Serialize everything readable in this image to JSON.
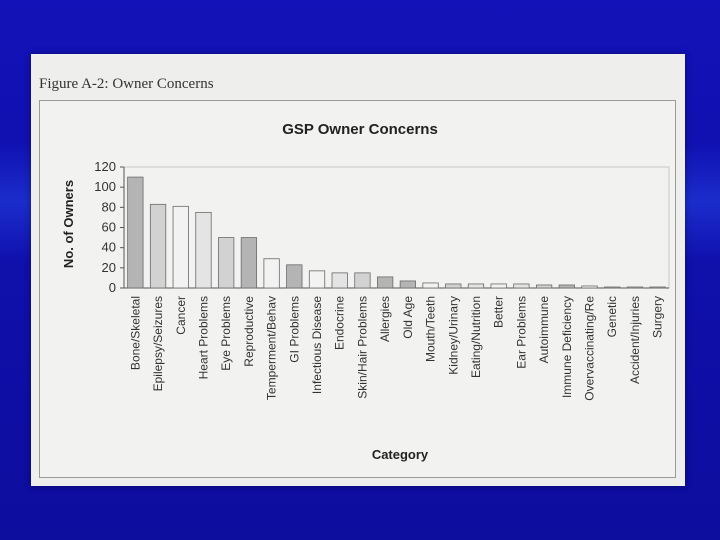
{
  "slide": {
    "figure_caption": "Figure A-2:  Owner Concerns"
  },
  "colors": {
    "background": "#1212b8",
    "page": "#eeeeec",
    "bar_fills": [
      "#b4b4b4",
      "#d2d2d2",
      "#f2f2f2",
      "#e4e4e4",
      "#c6c6c6"
    ]
  },
  "chart_data": {
    "type": "bar",
    "title": "GSP Owner Concerns",
    "xlabel": "Category",
    "ylabel": "No. of Owners",
    "ylim": [
      0,
      120
    ],
    "yticks": [
      0,
      20,
      40,
      60,
      80,
      100,
      120
    ],
    "grid": false,
    "categories": [
      "Bone/Skeletal",
      "Epilepsy/Seizures",
      "Cancer",
      "Heart Problems",
      "Eye Problems",
      "Reproductive",
      "Temperment/Behav",
      "GI Problems",
      "Infectious Disease",
      "Endocrine",
      "Skin/Hair Problems",
      "Allergies",
      "Old Age",
      "Mouth/Teeth",
      "Kidney/Urinary",
      "Eating/Nutrition",
      "Better",
      "Ear Problems",
      "Autoimmune",
      "Immune Deficiency",
      "Overvaccinating/Re",
      "Genetic",
      "Accident/Injuries",
      "Surgery"
    ],
    "values": [
      110,
      83,
      81,
      75,
      50,
      50,
      29,
      23,
      17,
      15,
      15,
      11,
      7,
      5,
      4,
      4,
      4,
      4,
      3,
      3,
      2,
      1,
      1,
      1
    ],
    "bar_shade": [
      0,
      1,
      2,
      3,
      1,
      0,
      2,
      0,
      2,
      3,
      1,
      0,
      0,
      2,
      1,
      3,
      2,
      3,
      1,
      0,
      2,
      1,
      3,
      1
    ]
  }
}
